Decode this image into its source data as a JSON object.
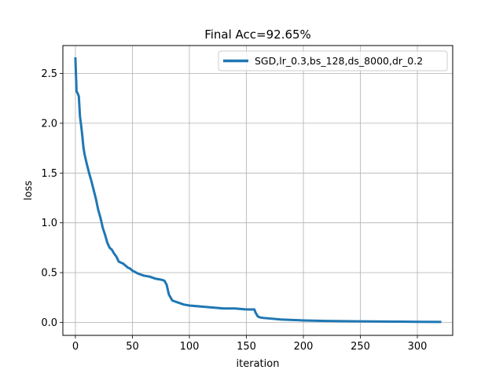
{
  "chart_data": {
    "type": "line",
    "title": "Final Acc=92.65%",
    "xlabel": "iteration",
    "ylabel": "loss",
    "xlim": [
      -11,
      331
    ],
    "ylim": [
      -0.13,
      2.78
    ],
    "xticks": [
      0,
      50,
      100,
      150,
      200,
      250,
      300
    ],
    "yticks": [
      0.0,
      0.5,
      1.0,
      1.5,
      2.0,
      2.5
    ],
    "xtick_labels": [
      "0",
      "50",
      "100",
      "150",
      "200",
      "250",
      "300"
    ],
    "ytick_labels": [
      "0.0",
      "0.5",
      "1.0",
      "1.5",
      "2.0",
      "2.5"
    ],
    "grid": true,
    "legend_position": "upper right",
    "series": [
      {
        "name": "SGD,lr_0.3,bs_128,ds_8000,dr_0.2",
        "color": "#1f77b4",
        "x": [
          0,
          1,
          2,
          3,
          4,
          5,
          6,
          7,
          8,
          10,
          12,
          14,
          16,
          18,
          20,
          22,
          24,
          26,
          28,
          30,
          32,
          34,
          36,
          38,
          40,
          42,
          44,
          46,
          48,
          50,
          55,
          60,
          65,
          70,
          75,
          78,
          80,
          82,
          85,
          90,
          95,
          100,
          110,
          120,
          130,
          140,
          150,
          157,
          158,
          160,
          162,
          165,
          170,
          180,
          190,
          200,
          220,
          240,
          260,
          280,
          300,
          320
        ],
        "y": [
          2.65,
          2.32,
          2.3,
          2.27,
          2.07,
          1.98,
          1.88,
          1.76,
          1.69,
          1.59,
          1.5,
          1.42,
          1.33,
          1.24,
          1.13,
          1.05,
          0.95,
          0.88,
          0.8,
          0.75,
          0.73,
          0.69,
          0.66,
          0.61,
          0.6,
          0.59,
          0.57,
          0.55,
          0.54,
          0.52,
          0.49,
          0.47,
          0.46,
          0.44,
          0.43,
          0.42,
          0.38,
          0.28,
          0.22,
          0.2,
          0.18,
          0.17,
          0.16,
          0.15,
          0.14,
          0.14,
          0.13,
          0.13,
          0.1,
          0.06,
          0.05,
          0.045,
          0.04,
          0.03,
          0.025,
          0.02,
          0.015,
          0.012,
          0.01,
          0.008,
          0.006,
          0.005
        ]
      }
    ]
  }
}
